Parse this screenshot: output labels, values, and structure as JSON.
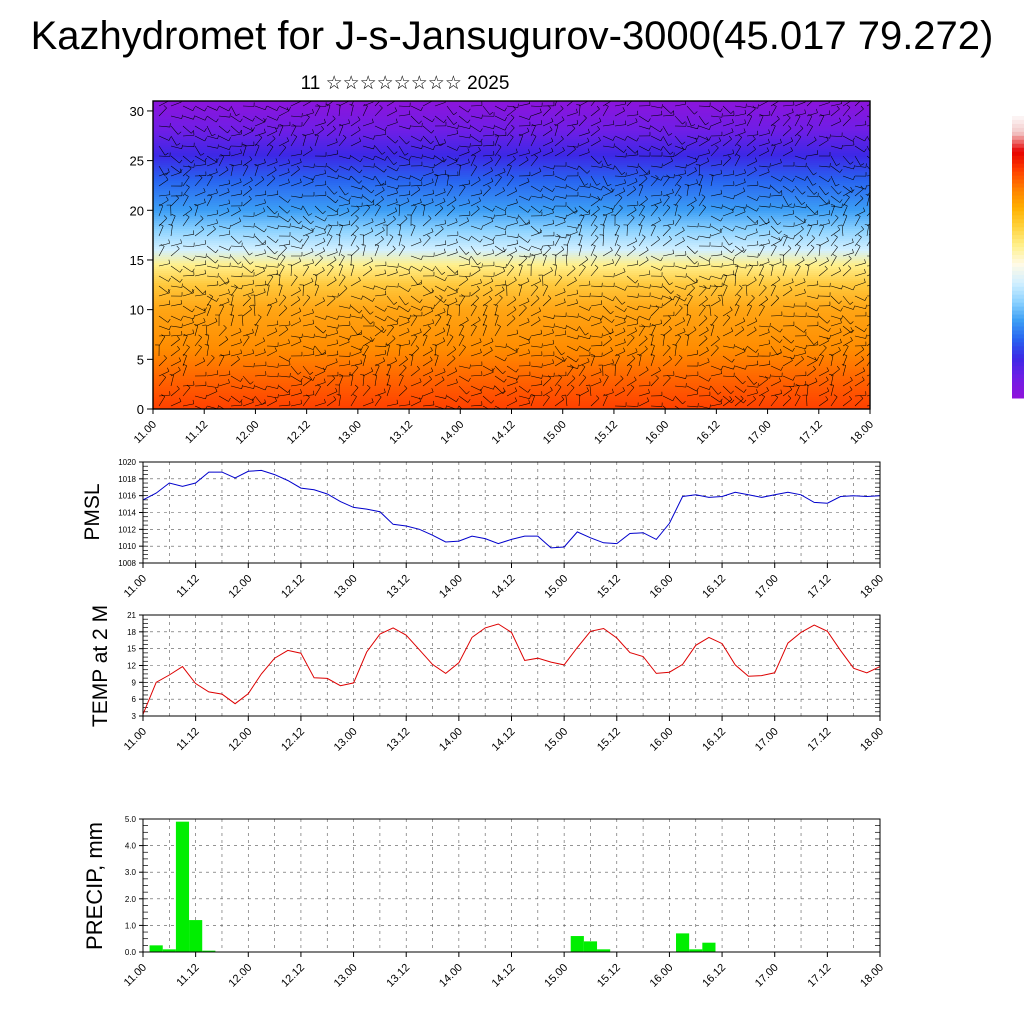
{
  "header": {
    "title": "Kazhydromet for J-s-Jansugurov-3000(45.017 79.272)",
    "subtitle": "11 ☆☆☆☆☆☆☆☆ 2025"
  },
  "chart_data": [
    {
      "type": "heatmap",
      "title": "",
      "xlabel": "",
      "ylabel": "",
      "x_ticks": [
        "11.00",
        "11.12",
        "12.00",
        "12.12",
        "13.00",
        "13.12",
        "14.00",
        "14.12",
        "15.00",
        "15.12",
        "16.00",
        "16.12",
        "17.00",
        "17.12",
        "18.00"
      ],
      "y_ticks": [
        "0",
        "5",
        "10",
        "15",
        "20",
        "25",
        "30"
      ],
      "ylim": [
        0,
        31
      ],
      "colorbar": {
        "placement": "right",
        "colors": [
          "#ffffff",
          "#f2c8c8",
          "#e60000",
          "#ff4000",
          "#ff8000",
          "#ffb000",
          "#ffd23c",
          "#fff08c",
          "#fffae6",
          "#d2f0ff",
          "#8cd2ff",
          "#3c9ef5",
          "#2864f0",
          "#3c28e6",
          "#6e1ee6",
          "#8c14dc"
        ]
      },
      "row_colors": [
        {
          "h": 0,
          "color": "#ff4000"
        },
        {
          "h": 3,
          "color": "#ff6400"
        },
        {
          "h": 6,
          "color": "#ff8c00"
        },
        {
          "h": 10,
          "color": "#ffa514"
        },
        {
          "h": 12.5,
          "color": "#ffc83c"
        },
        {
          "h": 14.5,
          "color": "#fff08c"
        },
        {
          "h": 16,
          "color": "#d2f0ff"
        },
        {
          "h": 18,
          "color": "#8cd2ff"
        },
        {
          "h": 20,
          "color": "#3c9ef5"
        },
        {
          "h": 23,
          "color": "#2864f0"
        },
        {
          "h": 25.5,
          "color": "#3c28e6"
        },
        {
          "h": 28,
          "color": "#6e1ee6"
        },
        {
          "h": 31,
          "color": "#8c14dc"
        }
      ]
    },
    {
      "type": "line",
      "ylabel": "PMSL",
      "xlabel": "",
      "ylim": [
        1008,
        1020
      ],
      "y_ticks": [
        "1008",
        "1010",
        "1012",
        "1014",
        "1016",
        "1018",
        "1020"
      ],
      "x_ticks": [
        "11.00",
        "11.12",
        "12.00",
        "12.12",
        "13.00",
        "13.12",
        "14.00",
        "14.12",
        "15.00",
        "15.12",
        "16.00",
        "16.12",
        "17.00",
        "17.12",
        "18.00"
      ],
      "grid": true,
      "series": [
        {
          "color": "#0000cc",
          "x": [
            0,
            3,
            6,
            9,
            12,
            15,
            18,
            21,
            24,
            27,
            30,
            33,
            36,
            39,
            42,
            45,
            48,
            51,
            54,
            57,
            60,
            63,
            66,
            69,
            72,
            75,
            78,
            81,
            84,
            87,
            90,
            93,
            96,
            99,
            102,
            105,
            108,
            111,
            114,
            117,
            120,
            123,
            126,
            129,
            132,
            135,
            138,
            141,
            144,
            147,
            150,
            153,
            156,
            159,
            162,
            165,
            168
          ],
          "y": [
            1015.5,
            1016.3,
            1017.5,
            1017.1,
            1017.5,
            1018.8,
            1018.8,
            1018.1,
            1018.9,
            1019.0,
            1018.5,
            1017.8,
            1016.9,
            1016.7,
            1016.2,
            1015.3,
            1014.6,
            1014.4,
            1014.1,
            1012.6,
            1012.4,
            1012.0,
            1011.3,
            1010.5,
            1010.6,
            1011.2,
            1010.9,
            1010.3,
            1010.8,
            1011.2,
            1011.2,
            1009.8,
            1009.9,
            1011.7,
            1011.0,
            1010.4,
            1010.3,
            1011.5,
            1011.6,
            1010.8,
            1012.7,
            1015.9,
            1016.1,
            1015.8,
            1015.9,
            1016.4,
            1016.1,
            1015.8,
            1016.1,
            1016.4,
            1016.1,
            1015.2,
            1015.1,
            1015.9,
            1016.0,
            1015.9,
            1016.0
          ]
        }
      ]
    },
    {
      "type": "line",
      "ylabel": "TEMP at 2 M",
      "xlabel": "",
      "ylim": [
        3,
        21
      ],
      "y_ticks": [
        "3",
        "6",
        "9",
        "12",
        "15",
        "18",
        "21"
      ],
      "x_ticks": [
        "11.00",
        "11.12",
        "12.00",
        "12.12",
        "13.00",
        "13.12",
        "14.00",
        "14.12",
        "15.00",
        "15.12",
        "16.00",
        "16.12",
        "17.00",
        "17.12",
        "18.00"
      ],
      "grid": true,
      "series": [
        {
          "color": "#dd0000",
          "x": [
            0,
            3,
            6,
            9,
            12,
            15,
            18,
            21,
            24,
            27,
            30,
            33,
            36,
            39,
            42,
            45,
            48,
            51,
            54,
            57,
            60,
            63,
            66,
            69,
            72,
            75,
            78,
            81,
            84,
            87,
            90,
            93,
            96,
            99,
            102,
            105,
            108,
            111,
            114,
            117,
            120,
            123,
            126,
            129,
            132,
            135,
            138,
            141,
            144,
            147,
            150,
            153,
            156,
            159,
            162,
            165,
            168
          ],
          "y": [
            3.3,
            9.0,
            10.3,
            11.8,
            8.8,
            7.3,
            6.9,
            5.2,
            7.0,
            10.5,
            13.3,
            14.7,
            14.2,
            9.8,
            9.7,
            8.4,
            8.9,
            14.4,
            17.6,
            18.7,
            17.4,
            14.8,
            12.2,
            10.6,
            12.5,
            17.0,
            18.7,
            19.4,
            17.9,
            12.9,
            13.3,
            12.6,
            12.1,
            15.2,
            18.1,
            18.6,
            16.9,
            14.3,
            13.6,
            10.6,
            10.8,
            12.2,
            15.6,
            17.0,
            15.9,
            12.1,
            10.1,
            10.2,
            10.7,
            16.0,
            17.9,
            19.2,
            18.1,
            14.7,
            11.5,
            10.7,
            11.8
          ]
        }
      ]
    },
    {
      "type": "bar",
      "ylabel": "PRECIP, mm",
      "xlabel": "",
      "ylim": [
        0,
        5
      ],
      "y_ticks": [
        "0.0",
        "1.0",
        "2.0",
        "3.0",
        "4.0",
        "5.0"
      ],
      "x_ticks": [
        "11.00",
        "11.12",
        "12.00",
        "12.12",
        "13.00",
        "13.12",
        "14.00",
        "14.12",
        "15.00",
        "15.12",
        "16.00",
        "16.12",
        "17.00",
        "17.12",
        "18.00"
      ],
      "grid": true,
      "bar_color": "#00ee00",
      "x": [
        3,
        6,
        9,
        12,
        15,
        99,
        102,
        105,
        123,
        126,
        129
      ],
      "values": [
        0.25,
        0.1,
        4.9,
        1.2,
        0.05,
        0.6,
        0.4,
        0.1,
        0.7,
        0.1,
        0.35
      ]
    }
  ]
}
